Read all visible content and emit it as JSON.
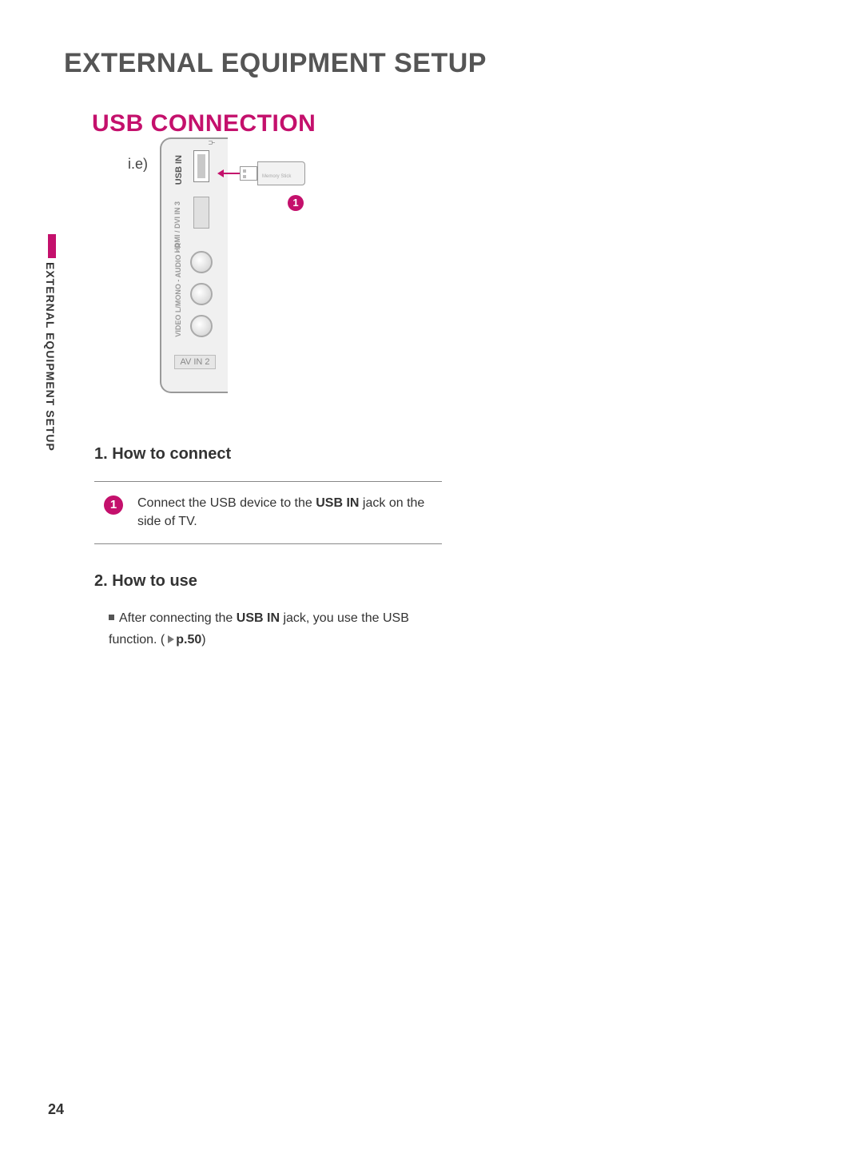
{
  "page": {
    "number": "24",
    "title": "EXTERNAL EQUIPMENT SETUP",
    "side_tab": "EXTERNAL EQUIPMENT SETUP"
  },
  "colors": {
    "accent": "#c4106c",
    "text": "#333333",
    "panel_bg": "#f0f0f0",
    "panel_border": "#999999",
    "muted": "#999999"
  },
  "section": {
    "title": "USB CONNECTION",
    "example_label": "i.e)"
  },
  "diagram": {
    "panel_labels": {
      "usb": "USB IN",
      "hdmi": "HDMI /\nDVI IN 3",
      "audio": "VIDEO  L/MONO - AUDIO - R",
      "avin": "AV IN 2"
    },
    "usb_stick_text": "Memory Stick",
    "callout": "1"
  },
  "how_to_connect": {
    "heading": "1. How to connect",
    "step_number": "1",
    "step_text_pre": "Connect the USB device to the ",
    "step_text_bold": "USB IN",
    "step_text_post": " jack on the side of TV."
  },
  "how_to_use": {
    "heading": "2. How to use",
    "text_pre": "After connecting the ",
    "text_bold": "USB IN",
    "text_mid": " jack, you use the USB function. (",
    "ref": "p.50",
    "text_post": ")"
  }
}
